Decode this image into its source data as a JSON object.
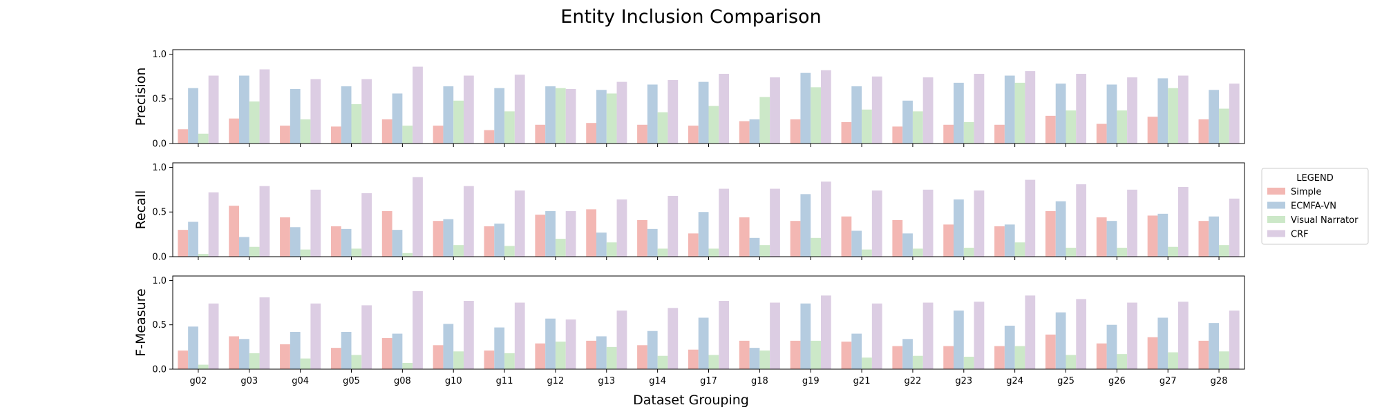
{
  "chart_data": {
    "type": "bar",
    "title": "Entity Inclusion Comparison",
    "xlabel": "Dataset Grouping",
    "categories": [
      "g02",
      "g03",
      "g04",
      "g05",
      "g08",
      "g10",
      "g11",
      "g12",
      "g13",
      "g14",
      "g17",
      "g18",
      "g19",
      "g21",
      "g22",
      "g23",
      "g24",
      "g25",
      "g26",
      "g27",
      "g28"
    ],
    "ylim": [
      0,
      1.05
    ],
    "yticks": [
      "0.0",
      "0.5",
      "1.0"
    ],
    "grid": false,
    "legend": {
      "title": "LEGEND",
      "placement": "right",
      "entries": [
        "Simple",
        "ECMFA-VN",
        "Visual Narrator",
        "CRF"
      ]
    },
    "colors": {
      "Simple": "#f3b7b3",
      "ECMFA-VN": "#b5cce0",
      "Visual Narrator": "#cce8c8",
      "CRF": "#dccde3"
    },
    "panels": [
      {
        "ylabel": "Precision",
        "series": [
          {
            "name": "Simple",
            "values": [
              0.16,
              0.28,
              0.2,
              0.19,
              0.27,
              0.2,
              0.15,
              0.21,
              0.23,
              0.21,
              0.2,
              0.25,
              0.27,
              0.24,
              0.19,
              0.21,
              0.21,
              0.31,
              0.22,
              0.3,
              0.27
            ]
          },
          {
            "name": "ECMFA-VN",
            "values": [
              0.62,
              0.76,
              0.61,
              0.64,
              0.56,
              0.64,
              0.62,
              0.64,
              0.6,
              0.66,
              0.69,
              0.27,
              0.79,
              0.64,
              0.48,
              0.68,
              0.76,
              0.67,
              0.66,
              0.73,
              0.6
            ]
          },
          {
            "name": "Visual Narrator",
            "values": [
              0.11,
              0.47,
              0.27,
              0.44,
              0.2,
              0.48,
              0.36,
              0.62,
              0.56,
              0.35,
              0.42,
              0.52,
              0.63,
              0.38,
              0.36,
              0.24,
              0.68,
              0.37,
              0.37,
              0.62,
              0.39
            ]
          },
          {
            "name": "CRF",
            "values": [
              0.76,
              0.83,
              0.72,
              0.72,
              0.86,
              0.76,
              0.77,
              0.61,
              0.69,
              0.71,
              0.78,
              0.74,
              0.82,
              0.75,
              0.74,
              0.78,
              0.81,
              0.78,
              0.74,
              0.76,
              0.67
            ]
          }
        ]
      },
      {
        "ylabel": "Recall",
        "series": [
          {
            "name": "Simple",
            "values": [
              0.3,
              0.57,
              0.44,
              0.34,
              0.51,
              0.4,
              0.34,
              0.47,
              0.53,
              0.41,
              0.26,
              0.44,
              0.4,
              0.45,
              0.41,
              0.36,
              0.34,
              0.51,
              0.44,
              0.46,
              0.4
            ]
          },
          {
            "name": "ECMFA-VN",
            "values": [
              0.39,
              0.22,
              0.33,
              0.31,
              0.3,
              0.42,
              0.37,
              0.51,
              0.27,
              0.31,
              0.5,
              0.21,
              0.7,
              0.29,
              0.26,
              0.64,
              0.36,
              0.62,
              0.4,
              0.48,
              0.45
            ]
          },
          {
            "name": "Visual Narrator",
            "values": [
              0.03,
              0.11,
              0.08,
              0.09,
              0.04,
              0.13,
              0.12,
              0.2,
              0.16,
              0.09,
              0.09,
              0.13,
              0.21,
              0.08,
              0.09,
              0.1,
              0.16,
              0.1,
              0.1,
              0.11,
              0.13
            ]
          },
          {
            "name": "CRF",
            "values": [
              0.72,
              0.79,
              0.75,
              0.71,
              0.89,
              0.79,
              0.74,
              0.51,
              0.64,
              0.68,
              0.76,
              0.76,
              0.84,
              0.74,
              0.75,
              0.74,
              0.86,
              0.81,
              0.75,
              0.78,
              0.65
            ]
          }
        ]
      },
      {
        "ylabel": "F-Measure",
        "series": [
          {
            "name": "Simple",
            "values": [
              0.21,
              0.37,
              0.28,
              0.24,
              0.35,
              0.27,
              0.21,
              0.29,
              0.32,
              0.27,
              0.22,
              0.32,
              0.32,
              0.31,
              0.26,
              0.26,
              0.26,
              0.39,
              0.29,
              0.36,
              0.32
            ]
          },
          {
            "name": "ECMFA-VN",
            "values": [
              0.48,
              0.34,
              0.42,
              0.42,
              0.4,
              0.51,
              0.47,
              0.57,
              0.37,
              0.43,
              0.58,
              0.24,
              0.74,
              0.4,
              0.34,
              0.66,
              0.49,
              0.64,
              0.5,
              0.58,
              0.52
            ]
          },
          {
            "name": "Visual Narrator",
            "values": [
              0.05,
              0.18,
              0.12,
              0.16,
              0.07,
              0.2,
              0.18,
              0.31,
              0.25,
              0.15,
              0.16,
              0.21,
              0.32,
              0.13,
              0.15,
              0.14,
              0.26,
              0.16,
              0.17,
              0.19,
              0.2
            ]
          },
          {
            "name": "CRF",
            "values": [
              0.74,
              0.81,
              0.74,
              0.72,
              0.88,
              0.77,
              0.75,
              0.56,
              0.66,
              0.69,
              0.77,
              0.75,
              0.83,
              0.74,
              0.75,
              0.76,
              0.83,
              0.79,
              0.75,
              0.76,
              0.66
            ]
          }
        ]
      }
    ]
  }
}
